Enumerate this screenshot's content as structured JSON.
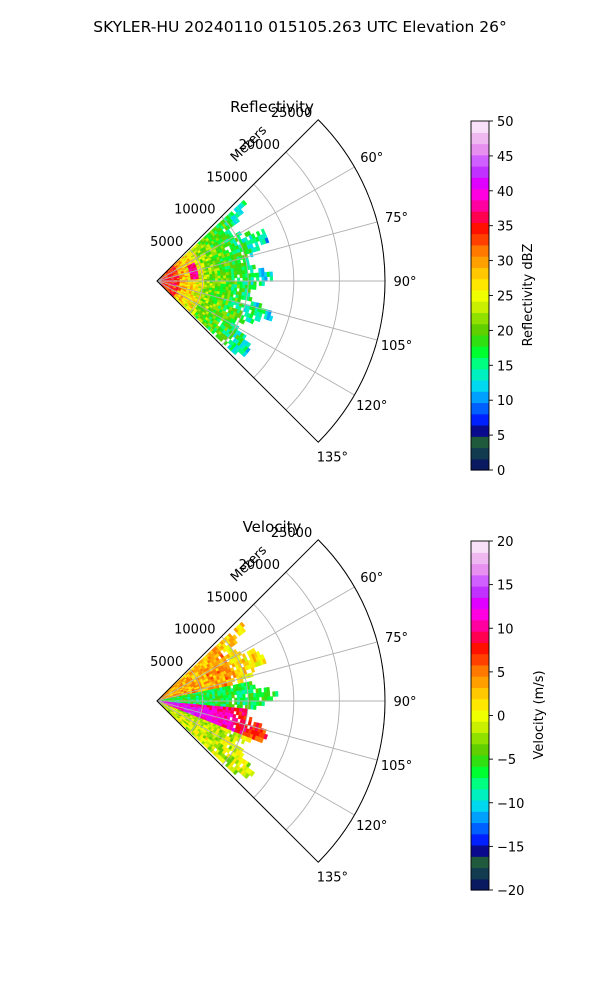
{
  "figure": {
    "suptitle": "SKYLER-HU  20240110  015105.263 UTC Elevation 26°"
  },
  "chart_data": [
    {
      "type": "polar_sector_ppi",
      "title": "Reflectivity",
      "radial_axis_label": "Meters",
      "radial_ticks": [
        5000,
        10000,
        15000,
        20000,
        25000
      ],
      "radial_tick_labels": [
        "5000",
        "10000",
        "15000",
        "20000",
        "25000"
      ],
      "range_max_m": 25000,
      "azimuth_range_deg": [
        45,
        135
      ],
      "azimuth_ticks": [
        60,
        75,
        90,
        105,
        120,
        135
      ],
      "azimuth_tick_labels": [
        "60°",
        "75°",
        "90°",
        "105°",
        "120°",
        "135°"
      ],
      "grid": true,
      "colorbar": {
        "label": "Reflectivity dBZ",
        "range": [
          0,
          50
        ],
        "ticks": [
          0,
          5,
          10,
          15,
          20,
          25,
          30,
          35,
          40,
          45,
          50
        ],
        "tick_labels": [
          "0",
          "5",
          "10",
          "15",
          "20",
          "25",
          "30",
          "35",
          "40",
          "45",
          "50"
        ],
        "colors": [
          "#0a1a60",
          "#123b50",
          "#1f5a3c",
          "#0a0a8c",
          "#0020ff",
          "#0060ff",
          "#00a0ff",
          "#00d8f0",
          "#00f0c0",
          "#00ff80",
          "#00ff30",
          "#30e010",
          "#60d000",
          "#90e000",
          "#c8f000",
          "#f0ff00",
          "#ffe800",
          "#ffc800",
          "#ffa000",
          "#ff7800",
          "#ff4000",
          "#ff1000",
          "#ff0050",
          "#ff00a0",
          "#ff00e0",
          "#e000ff",
          "#c030ff",
          "#d060ff",
          "#e890f0",
          "#f0b8f0",
          "#f8e0f8"
        ]
      },
      "data_summary": {
        "echo_extent_m": [
          0,
          12000
        ],
        "near_range_dBZ": [
          28,
          38
        ],
        "mid_range_dBZ": [
          15,
          25
        ],
        "far_range_dBZ": [
          8,
          18
        ]
      }
    },
    {
      "type": "polar_sector_ppi",
      "title": "Velocity",
      "radial_axis_label": "Meters",
      "radial_ticks": [
        5000,
        10000,
        15000,
        20000,
        25000
      ],
      "radial_tick_labels": [
        "5000",
        "10000",
        "15000",
        "20000",
        "25000"
      ],
      "range_max_m": 25000,
      "azimuth_range_deg": [
        45,
        135
      ],
      "azimuth_ticks": [
        60,
        75,
        90,
        105,
        120,
        135
      ],
      "azimuth_tick_labels": [
        "60°",
        "75°",
        "90°",
        "105°",
        "120°",
        "135°"
      ],
      "grid": true,
      "colorbar": {
        "label": "Velocity (m/s)",
        "range": [
          -20,
          20
        ],
        "ticks": [
          -20,
          -15,
          -10,
          -5,
          0,
          5,
          10,
          15,
          20
        ],
        "tick_labels": [
          "−20",
          "−15",
          "−10",
          "−5",
          "0",
          "5",
          "10",
          "15",
          "20"
        ],
        "colors": [
          "#0a1a60",
          "#123b50",
          "#1f5a3c",
          "#0a0a8c",
          "#0020ff",
          "#0060ff",
          "#00a0ff",
          "#00d8f0",
          "#00f0c0",
          "#00ff80",
          "#00ff30",
          "#30e010",
          "#60d000",
          "#90e000",
          "#c8f000",
          "#f0ff00",
          "#ffe800",
          "#ffc800",
          "#ffa000",
          "#ff7800",
          "#ff4000",
          "#ff1000",
          "#ff0050",
          "#ff00a0",
          "#ff00e0",
          "#e000ff",
          "#c030ff",
          "#d060ff",
          "#e890f0",
          "#f0b8f0",
          "#f8e0f8"
        ]
      },
      "data_summary": {
        "echo_extent_m": [
          0,
          12000
        ],
        "upper_sector_m_s": [
          -2,
          6
        ],
        "center_band_m_s": [
          -12,
          -6
        ],
        "lower_sector_m_s": [
          4,
          14
        ]
      }
    }
  ]
}
